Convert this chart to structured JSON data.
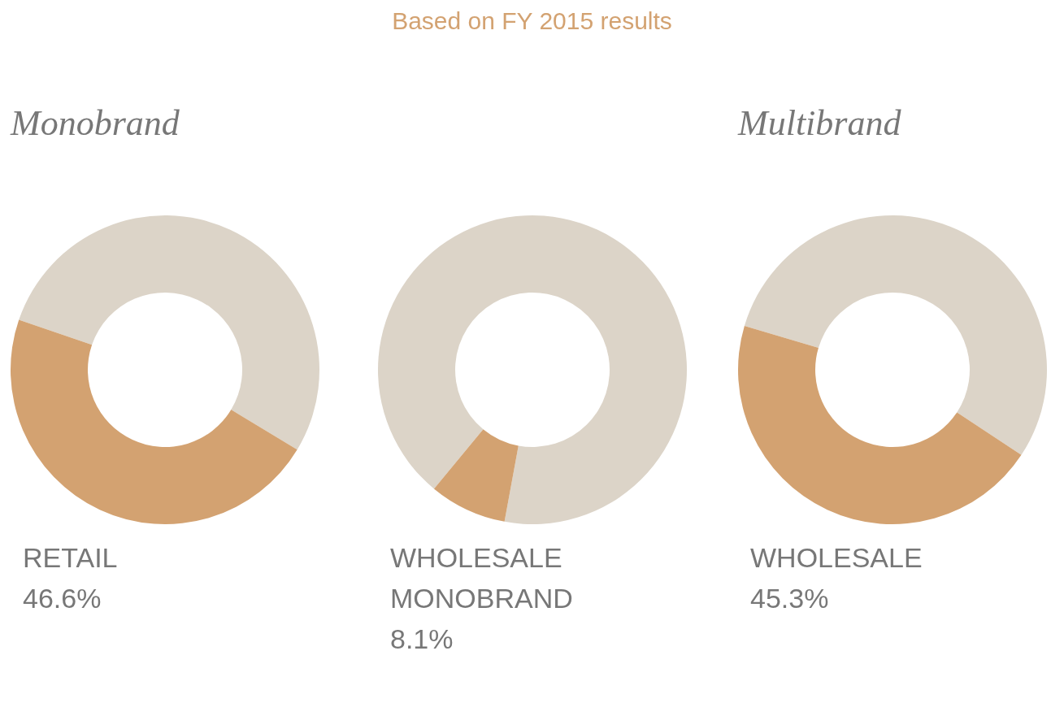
{
  "chart_data": [
    {
      "type": "other",
      "title": "Based on FY 2015 results"
    },
    {
      "type": "donut",
      "subtitle": "Monobrand",
      "categories": [
        null,
        "RETAIL"
      ],
      "values": [
        53.4,
        46.6
      ],
      "colors": [
        "#dcd4c8",
        "#d3a271"
      ],
      "value_labels": [
        null,
        "46.6%"
      ]
    },
    {
      "type": "donut",
      "categories": [
        null,
        "WHOLESALE MONOBRAND"
      ],
      "values": [
        91.9,
        8.1
      ],
      "colors": [
        "#dcd4c8",
        "#d3a271"
      ],
      "value_labels": [
        null,
        "8.1%"
      ]
    },
    {
      "type": "donut",
      "subtitle": "Multibrand",
      "categories": [
        null,
        "WHOLESALE"
      ],
      "values": [
        54.7,
        45.3
      ],
      "colors": [
        "#dcd4c8",
        "#d3a271"
      ],
      "value_labels": [
        null,
        "45.3%"
      ]
    }
  ]
}
